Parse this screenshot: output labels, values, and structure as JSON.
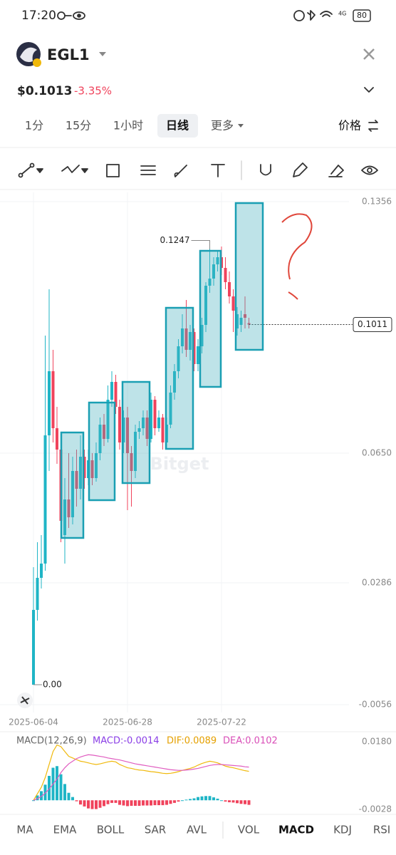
{
  "status_bar": {
    "time": "17:20",
    "network": "4G",
    "battery": "80"
  },
  "header": {
    "symbol": "EGL1",
    "price": "$0.1013",
    "change": "-3.35%"
  },
  "tabs": [
    "1分",
    "15分",
    "1小时",
    "日线",
    "更多"
  ],
  "price_mode": "价格",
  "indicators": [
    "MA",
    "EMA",
    "BOLL",
    "SAR",
    "AVL",
    "VOL",
    "MACD",
    "KDJ",
    "RSI"
  ],
  "chart_data": [
    {
      "type": "candlestick",
      "watermark": "Bitget",
      "up_color": "#1fb5c6",
      "down_color": "#f0435c",
      "ylim": [
        -0.0056,
        0.1356
      ],
      "yticks": [
        0.1356,
        {
          "value": 0.065,
          "label": "0.0650"
        },
        0.0286,
        -0.0056
      ],
      "xticks": [
        {
          "value": 0,
          "label": "2025-06-04"
        },
        {
          "value": 24,
          "label": "2025-06-28"
        },
        {
          "value": 48,
          "label": "2025-07-22"
        }
      ],
      "high_marker": 0.1247,
      "low_marker": {
        "value": 0,
        "label": "0.00"
      },
      "last_price": 0.1011,
      "candles": [
        [
          0,
          0.033,
          0,
          0.021
        ],
        [
          0.021,
          0.04,
          0.018,
          0.03
        ],
        [
          0.03,
          0.042,
          0.027,
          0.034
        ],
        [
          0.034,
          0.098,
          0.032,
          0.07
        ],
        [
          0.07,
          0.111,
          0.06,
          0.088
        ],
        [
          0.088,
          0.094,
          0.068,
          0.072
        ],
        [
          0.072,
          0.078,
          0.062,
          0.066
        ],
        [
          0.066,
          0.07,
          0.04,
          0.046
        ],
        [
          0.042,
          0.058,
          0.034,
          0.052
        ],
        [
          0.052,
          0.065,
          0.044,
          0.047
        ],
        [
          0.047,
          0.064,
          0.045,
          0.06
        ],
        [
          0.06,
          0.066,
          0.05,
          0.055
        ],
        [
          0.055,
          0.07,
          0.052,
          0.064
        ],
        [
          0.064,
          0.066,
          0.055,
          0.058
        ],
        [
          0.058,
          0.066,
          0.056,
          0.063
        ],
        [
          0.063,
          0.065,
          0.056,
          0.058
        ],
        [
          0.058,
          0.068,
          0.057,
          0.065
        ],
        [
          0.065,
          0.075,
          0.063,
          0.073
        ],
        [
          0.073,
          0.076,
          0.067,
          0.069
        ],
        [
          0.069,
          0.084,
          0.068,
          0.08
        ],
        [
          0.08,
          0.088,
          0.078,
          0.085
        ],
        [
          0.085,
          0.087,
          0.076,
          0.078
        ],
        [
          0.078,
          0.08,
          0.066,
          0.068
        ],
        [
          0.068,
          0.077,
          0.065,
          0.075
        ],
        [
          0.075,
          0.078,
          0.049,
          0.065
        ],
        [
          0.065,
          0.067,
          0.05,
          0.06
        ],
        [
          0.06,
          0.073,
          0.058,
          0.071
        ],
        [
          0.071,
          0.074,
          0.069,
          0.072
        ],
        [
          0.072,
          0.077,
          0.07,
          0.075
        ],
        [
          0.075,
          0.077,
          0.067,
          0.069
        ],
        [
          0.069,
          0.082,
          0.068,
          0.08
        ],
        [
          0.08,
          0.081,
          0.07,
          0.072
        ],
        [
          0.072,
          0.077,
          0.071,
          0.075
        ],
        [
          0.075,
          0.076,
          0.066,
          0.068
        ],
        [
          0.068,
          0.075,
          0.066,
          0.073
        ],
        [
          0.073,
          0.084,
          0.072,
          0.082
        ],
        [
          0.082,
          0.09,
          0.08,
          0.088
        ],
        [
          0.088,
          0.097,
          0.086,
          0.095
        ],
        [
          0.095,
          0.104,
          0.093,
          0.1
        ],
        [
          0.1,
          0.108,
          0.092,
          0.094
        ],
        [
          0.094,
          0.101,
          0.091,
          0.099
        ],
        [
          0.099,
          0.1,
          0.088,
          0.09
        ],
        [
          0.09,
          0.097,
          0.088,
          0.095
        ],
        [
          0.095,
          0.103,
          0.093,
          0.101
        ],
        [
          0.101,
          0.113,
          0.099,
          0.112
        ],
        [
          0.112,
          0.1247,
          0.11,
          0.114
        ],
        [
          0.114,
          0.12,
          0.112,
          0.118
        ],
        [
          0.118,
          0.122,
          0.116,
          0.12
        ],
        [
          0.12,
          0.123,
          0.115,
          0.117
        ],
        [
          0.117,
          0.12,
          0.111,
          0.113
        ],
        [
          0.113,
          0.116,
          0.107,
          0.109
        ],
        [
          0.109,
          0.111,
          0.099,
          0.105
        ],
        [
          0.1,
          0.106,
          0.098,
          0.104
        ],
        [
          0.101,
          0.105,
          0.099,
          0.103
        ],
        [
          0.104,
          0.109,
          0.1,
          0.103
        ],
        [
          0.1015,
          0.103,
          0.1,
          0.1011
        ]
      ]
    },
    {
      "type": "macd",
      "title": "MACD(12,26,9)",
      "readouts": [
        {
          "text": "MACD:-0.0014",
          "color": "#8a3ee6"
        },
        {
          "text": "DIF:0.0089",
          "color": "#e5a000"
        },
        {
          "text": "DEA:0.0102",
          "color": "#d94fb8"
        }
      ],
      "ylim": [
        -0.0028,
        0.018
      ],
      "yticks": [
        {
          "value": 0.018,
          "label": "0.0180"
        },
        -0.0028
      ],
      "histogram": {
        "up_color": "#1fb5c6",
        "down_color": "#f0435c",
        "values": [
          0,
          0.0015,
          0.0028,
          0.0048,
          0.0075,
          0.01,
          0.0105,
          0.008,
          0.005,
          0.0023,
          0.001,
          -0.0003,
          -0.0013,
          -0.0019,
          -0.0025,
          -0.0027,
          -0.0027,
          -0.0023,
          -0.0018,
          -0.0012,
          -0.0008,
          -0.0008,
          -0.0014,
          -0.0016,
          -0.0018,
          -0.0017,
          -0.0017,
          -0.0017,
          -0.0016,
          -0.0016,
          -0.0016,
          -0.0015,
          -0.0015,
          -0.0015,
          -0.0014,
          -0.0011,
          -0.0008,
          -0.0004,
          0,
          0.0002,
          0.0004,
          0.0006,
          0.001,
          0.0012,
          0.0013,
          0.0013,
          0.0009,
          0.0005,
          0,
          -0.0004,
          -0.0006,
          -0.0007,
          -0.0009,
          -0.0011,
          -0.0012,
          -0.0014
        ]
      },
      "lines": [
        {
          "color": "#f0b90b",
          "values": [
            0,
            0.002,
            0.004,
            0.007,
            0.011,
            0.015,
            0.017,
            0.0165,
            0.015,
            0.0135,
            0.013,
            0.0125,
            0.012,
            0.0118,
            0.0115,
            0.0112,
            0.011,
            0.0112,
            0.0115,
            0.0118,
            0.012,
            0.0118,
            0.011,
            0.0105,
            0.01,
            0.0098,
            0.0095,
            0.0093,
            0.0092,
            0.009,
            0.0088,
            0.0087,
            0.0085,
            0.0083,
            0.0082,
            0.0083,
            0.0085,
            0.0088,
            0.0092,
            0.0095,
            0.0098,
            0.0102,
            0.0108,
            0.0113,
            0.0117,
            0.012,
            0.0118,
            0.0115,
            0.011,
            0.0105,
            0.0102,
            0.01,
            0.0097,
            0.0094,
            0.0091,
            0.0089
          ]
        },
        {
          "color": "#e05cc0",
          "values": [
            0,
            0.0005,
            0.0012,
            0.0022,
            0.0035,
            0.005,
            0.0065,
            0.0085,
            0.01,
            0.0112,
            0.012,
            0.0128,
            0.0133,
            0.0137,
            0.014,
            0.0139,
            0.0137,
            0.0135,
            0.0133,
            0.013,
            0.0128,
            0.0126,
            0.0124,
            0.0121,
            0.0118,
            0.0115,
            0.0112,
            0.011,
            0.0108,
            0.0106,
            0.0104,
            0.0102,
            0.01,
            0.0098,
            0.0096,
            0.0094,
            0.0093,
            0.0092,
            0.0092,
            0.0093,
            0.0094,
            0.0096,
            0.0098,
            0.0101,
            0.0104,
            0.0107,
            0.0109,
            0.011,
            0.011,
            0.0109,
            0.0108,
            0.0107,
            0.0106,
            0.0105,
            0.0103,
            0.0102
          ]
        }
      ]
    }
  ]
}
